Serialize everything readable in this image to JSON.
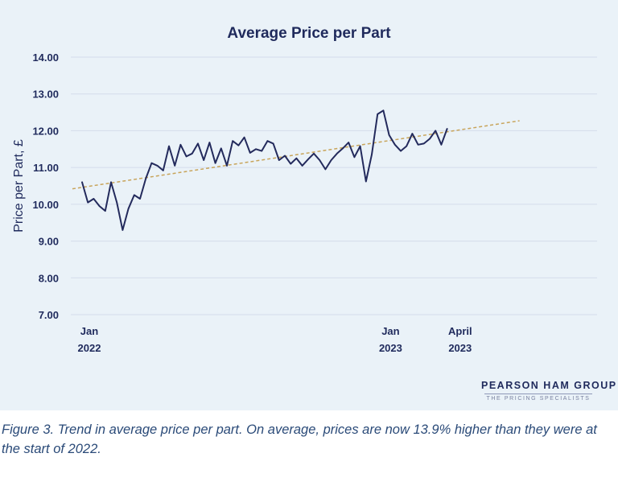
{
  "chart_data": {
    "type": "line",
    "title": "Average Price per Part",
    "ylabel": "Price per Part, £",
    "xlabel": "",
    "ylim": [
      7.0,
      14.0
    ],
    "yticks": [
      "14.00",
      "13.00",
      "12.00",
      "11.00",
      "10.00",
      "9.00",
      "8.00",
      "7.00"
    ],
    "x_tick_labels": [
      {
        "index": 0,
        "line1": "Jan",
        "line2": "2022"
      },
      {
        "index": 52,
        "line1": "Jan",
        "line2": "2023"
      },
      {
        "index": 64,
        "line1": "April",
        "line2": "2023"
      }
    ],
    "grid": true,
    "legend": "none",
    "series": [
      {
        "values": [
          10.6,
          10.05,
          10.15,
          9.95,
          9.82,
          10.6,
          10.05,
          9.3,
          9.88,
          10.25,
          10.15,
          10.7,
          11.12,
          11.05,
          10.92,
          11.58,
          11.05,
          11.62,
          11.3,
          11.38,
          11.65,
          11.2,
          11.68,
          11.12,
          11.52,
          11.05,
          11.72,
          11.6,
          11.82,
          11.4,
          11.5,
          11.45,
          11.72,
          11.65,
          11.2,
          11.32,
          11.1,
          11.25,
          11.05,
          11.22,
          11.38,
          11.2,
          10.95,
          11.2,
          11.38,
          11.52,
          11.68,
          11.28,
          11.58,
          10.62,
          11.35,
          12.45,
          12.55,
          11.88,
          11.62,
          11.45,
          11.58,
          11.92,
          11.62,
          11.65,
          11.78,
          12.0,
          11.62,
          12.05
        ]
      }
    ],
    "trendline": {
      "start": 10.42,
      "end": 12.27,
      "end_index": 75.5
    },
    "colors": {
      "line": "#232a5c",
      "trend": "#c8a45a",
      "grid": "#d4dceb",
      "panel": "#eaf2f8"
    }
  },
  "brand": {
    "name": "PEARSON HAM GROUP",
    "tagline": "THE PRICING SPECIALISTS"
  },
  "caption": "Figure 3. Trend in average price per part. On average, prices are now 13.9% higher than they were at the start of 2022."
}
